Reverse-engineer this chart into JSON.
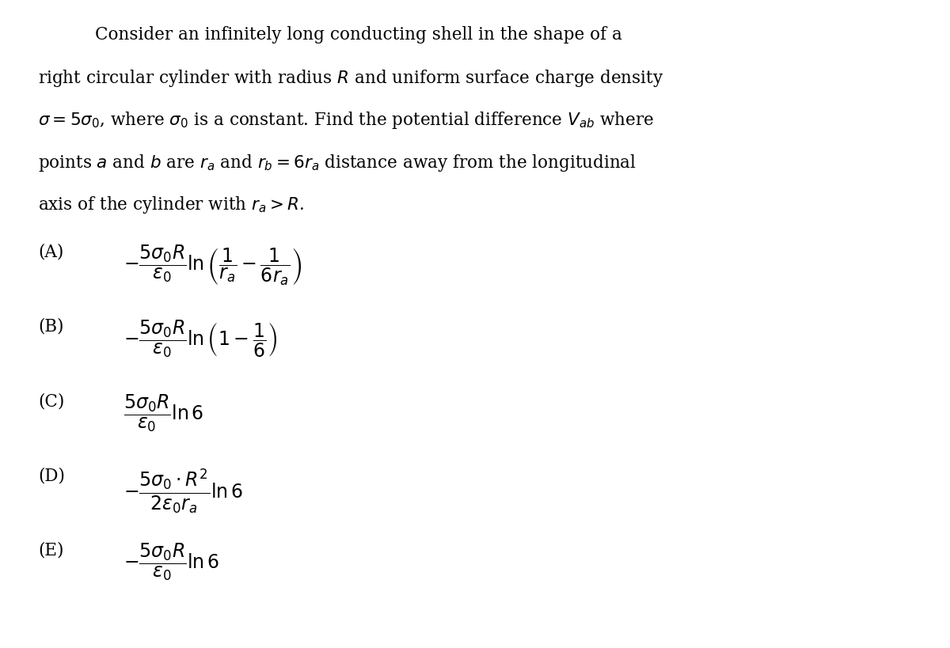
{
  "background_color": "#ffffff",
  "figsize": [
    12.0,
    8.2
  ],
  "dpi": 100,
  "paragraph": "Consider an infinitely long conducting shell in the shape of a right circular cylinder with radius $R$ and uniform surface charge density $\\sigma = 5\\sigma_0$, where $\\sigma_0$ is a constant. Find the potential difference $V_{ab}$ where points $a$ and $b$ are $r_a$ and $r_b = 6r_a$ distance away from the longitudinal axis of the cylinder with $r_a > R$.",
  "options": [
    {
      "label": "(A)",
      "formula": "$-\\dfrac{5\\sigma_0 R}{\\epsilon_0} \\ln \\left( \\dfrac{1}{r_a} - \\dfrac{1}{6r_a} \\right)$"
    },
    {
      "label": "(B)",
      "formula": "$-\\dfrac{5\\sigma_0 R}{\\epsilon_0} \\ln \\left( 1 - \\dfrac{1}{6} \\right)$"
    },
    {
      "label": "(C)",
      "formula": "$\\dfrac{5\\sigma_0 R}{\\epsilon_0} \\ln 6$"
    },
    {
      "label": "(D)",
      "formula": "$-\\dfrac{5\\sigma_0 \\cdot R^2}{2\\epsilon_0 r_a} \\ln 6$"
    },
    {
      "label": "(E)",
      "formula": "$-\\dfrac{5\\sigma_0 R}{\\epsilon_0} \\ln 6$"
    }
  ],
  "text_color": "#000000",
  "font_size_paragraph": 15.5,
  "font_size_options": 17,
  "font_size_labels": 15.5
}
